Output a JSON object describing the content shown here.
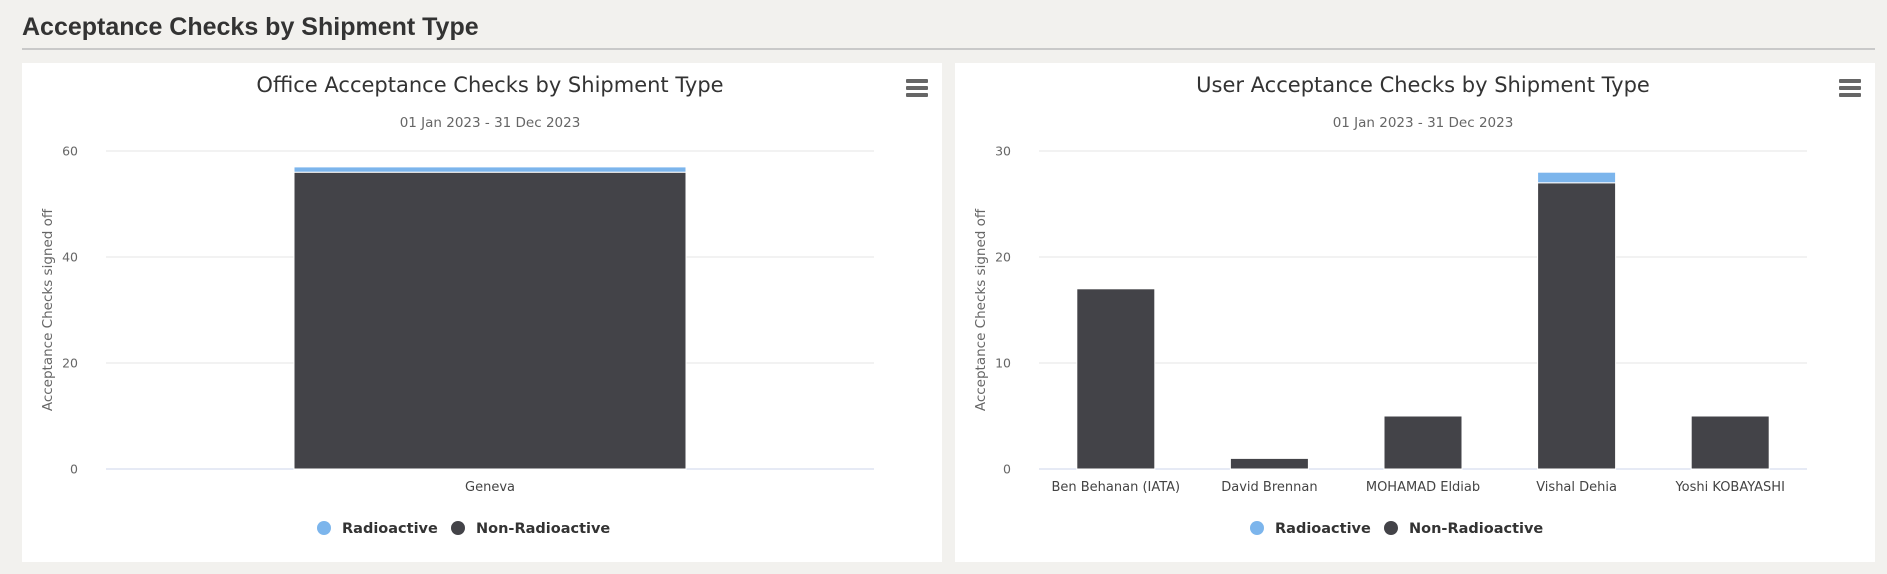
{
  "page": {
    "title": "Acceptance Checks by Shipment Type"
  },
  "colors": {
    "radioactive": "#7cb5ec",
    "non_radioactive": "#434348"
  },
  "chart_data": [
    {
      "type": "bar",
      "stacked": true,
      "title": "Office Acceptance Checks by Shipment Type",
      "subtitle": "01 Jan 2023 - 31 Dec 2023",
      "xlabel": "",
      "ylabel": "Acceptance Checks signed off",
      "ylim": [
        0,
        60
      ],
      "yticks": [
        0,
        20,
        40,
        60
      ],
      "grid": true,
      "legend_position": "bottom-center",
      "categories": [
        "Geneva"
      ],
      "series": [
        {
          "name": "Radioactive",
          "values": [
            1
          ]
        },
        {
          "name": "Non-Radioactive",
          "values": [
            56
          ]
        }
      ]
    },
    {
      "type": "bar",
      "stacked": true,
      "title": "User Acceptance Checks by Shipment Type",
      "subtitle": "01 Jan 2023 - 31 Dec 2023",
      "xlabel": "",
      "ylabel": "Acceptance Checks signed off",
      "ylim": [
        0,
        30
      ],
      "yticks": [
        0,
        10,
        20,
        30
      ],
      "grid": true,
      "legend_position": "bottom-center",
      "categories": [
        "Ben Behanan (IATA)",
        "David Brennan",
        "MOHAMAD Eldiab",
        "Vishal Dehia",
        "Yoshi KOBAYASHI"
      ],
      "series": [
        {
          "name": "Radioactive",
          "values": [
            0,
            0,
            0,
            1,
            0
          ]
        },
        {
          "name": "Non-Radioactive",
          "values": [
            17,
            1,
            5,
            27,
            5
          ]
        }
      ]
    }
  ]
}
